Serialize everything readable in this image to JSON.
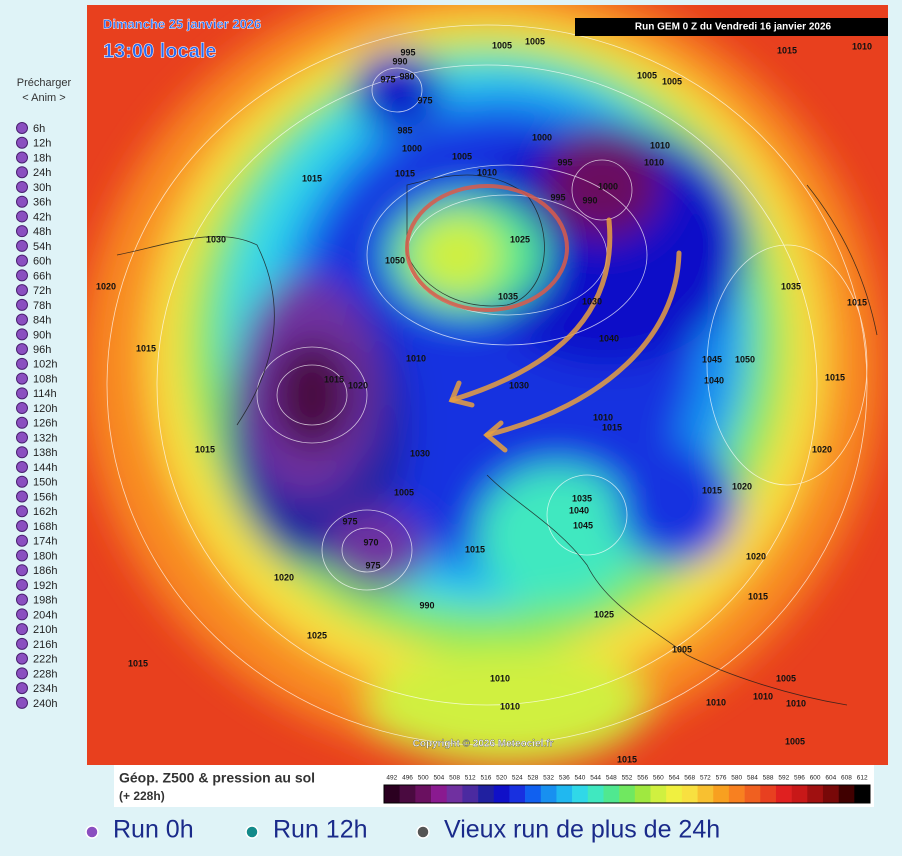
{
  "sidebar": {
    "preload": "Précharger",
    "anim": "< Anim >",
    "hours": [
      "6h",
      "12h",
      "18h",
      "24h",
      "30h",
      "36h",
      "42h",
      "48h",
      "54h",
      "60h",
      "66h",
      "72h",
      "78h",
      "84h",
      "90h",
      "96h",
      "102h",
      "108h",
      "114h",
      "120h",
      "126h",
      "132h",
      "138h",
      "144h",
      "150h",
      "156h",
      "162h",
      "168h",
      "174h",
      "180h",
      "186h",
      "192h",
      "198h",
      "204h",
      "210h",
      "216h",
      "222h",
      "228h",
      "234h",
      "240h"
    ]
  },
  "map": {
    "date": "Dimanche 25 janvier 2026",
    "time": "13:00 locale",
    "run": "Run GEM 0 Z du Vendredi 16 janvier 2026",
    "copyright": "Copyright © 2026 Meteociel.fr",
    "pressure_labels": [
      995,
      990,
      975,
      980,
      975,
      985,
      1000,
      1005,
      1005,
      1015,
      1010,
      1005,
      1005,
      1000,
      995,
      1010,
      1010,
      1000,
      995,
      990,
      1005,
      1010,
      1015,
      1015,
      1025,
      1030,
      1050,
      1035,
      1030,
      1020,
      1035,
      1015,
      1015,
      1040,
      1015,
      1020,
      1010,
      1045,
      1050,
      1040,
      1015,
      1030,
      1010,
      1015,
      1015,
      1030,
      1020,
      1005,
      1015,
      1020,
      1035,
      1040,
      1045,
      975,
      970,
      975,
      1020,
      1015,
      1020,
      1015,
      990,
      1025,
      1025,
      1005,
      1015,
      1010,
      1010,
      1005,
      1010,
      1010,
      1010,
      1005,
      1015
    ]
  },
  "legend": {
    "title": "Géop. Z500 & pression au sol",
    "step": "(+ 228h)",
    "scale": {
      "values": [
        492,
        496,
        500,
        504,
        508,
        512,
        516,
        520,
        524,
        528,
        532,
        536,
        540,
        544,
        548,
        552,
        556,
        560,
        564,
        568,
        572,
        576,
        580,
        584,
        588,
        592,
        596,
        600,
        604,
        608,
        612
      ],
      "colors": [
        "#2b0020",
        "#4a0a40",
        "#6a1060",
        "#8a1a90",
        "#7030a0",
        "#4b2aa0",
        "#2020a0",
        "#1010c8",
        "#1830e0",
        "#1060f0",
        "#1890f0",
        "#20b8f0",
        "#30d8e8",
        "#40e8c0",
        "#50e890",
        "#70e860",
        "#a0e840",
        "#d0f040",
        "#f0f040",
        "#f8e040",
        "#f8c030",
        "#f8a020",
        "#f88020",
        "#f06020",
        "#e84020",
        "#e02020",
        "#c81818",
        "#a01010",
        "#780808",
        "#400000",
        "#000000"
      ]
    }
  },
  "runs": [
    {
      "label": "Run 0h",
      "color": "#8a4fc0"
    },
    {
      "label": "Run 12h",
      "color": "#138a8a"
    },
    {
      "label": "Vieux run de plus de 24h",
      "color": "#555555"
    }
  ]
}
